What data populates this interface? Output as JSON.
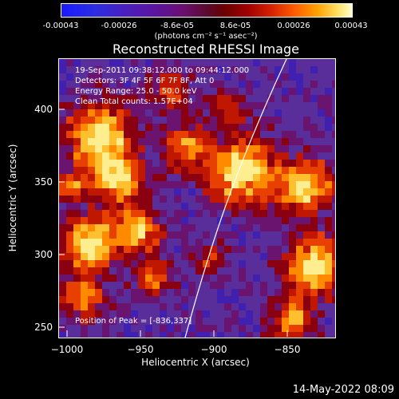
{
  "colorbar": {
    "ticks": [
      "-0.00043",
      "-0.00026",
      "-8.6e-05",
      "8.6e-05",
      "0.00026",
      "0.00043"
    ],
    "units": "(photons cm⁻² s⁻¹ asec⁻²)"
  },
  "title": "Reconstructed RHESSI Image",
  "info": {
    "time_range": "19-Sep-2011 09:38:12.000 to 09:44:12.000",
    "detectors": "Detectors: 3F 4F 5F 6F 7F 8F, Att 0",
    "energy": "Energy Range: 25.0 - 50.0 keV",
    "clean": "Clean     Total counts: 1.57E+04",
    "peak": "Position of Peak = [-836,337]"
  },
  "axes": {
    "xlabel": "Heliocentric X (arcsec)",
    "ylabel": "Heliocentric Y (arcsec)",
    "xticks": [
      "−1000",
      "−950",
      "−900",
      "−850"
    ],
    "yticks": [
      "400",
      "350",
      "300",
      "250"
    ]
  },
  "timestamp": "14-May-2022 08:09",
  "colors": {
    "limb_line": "#ffffff",
    "background": "#000000"
  }
}
